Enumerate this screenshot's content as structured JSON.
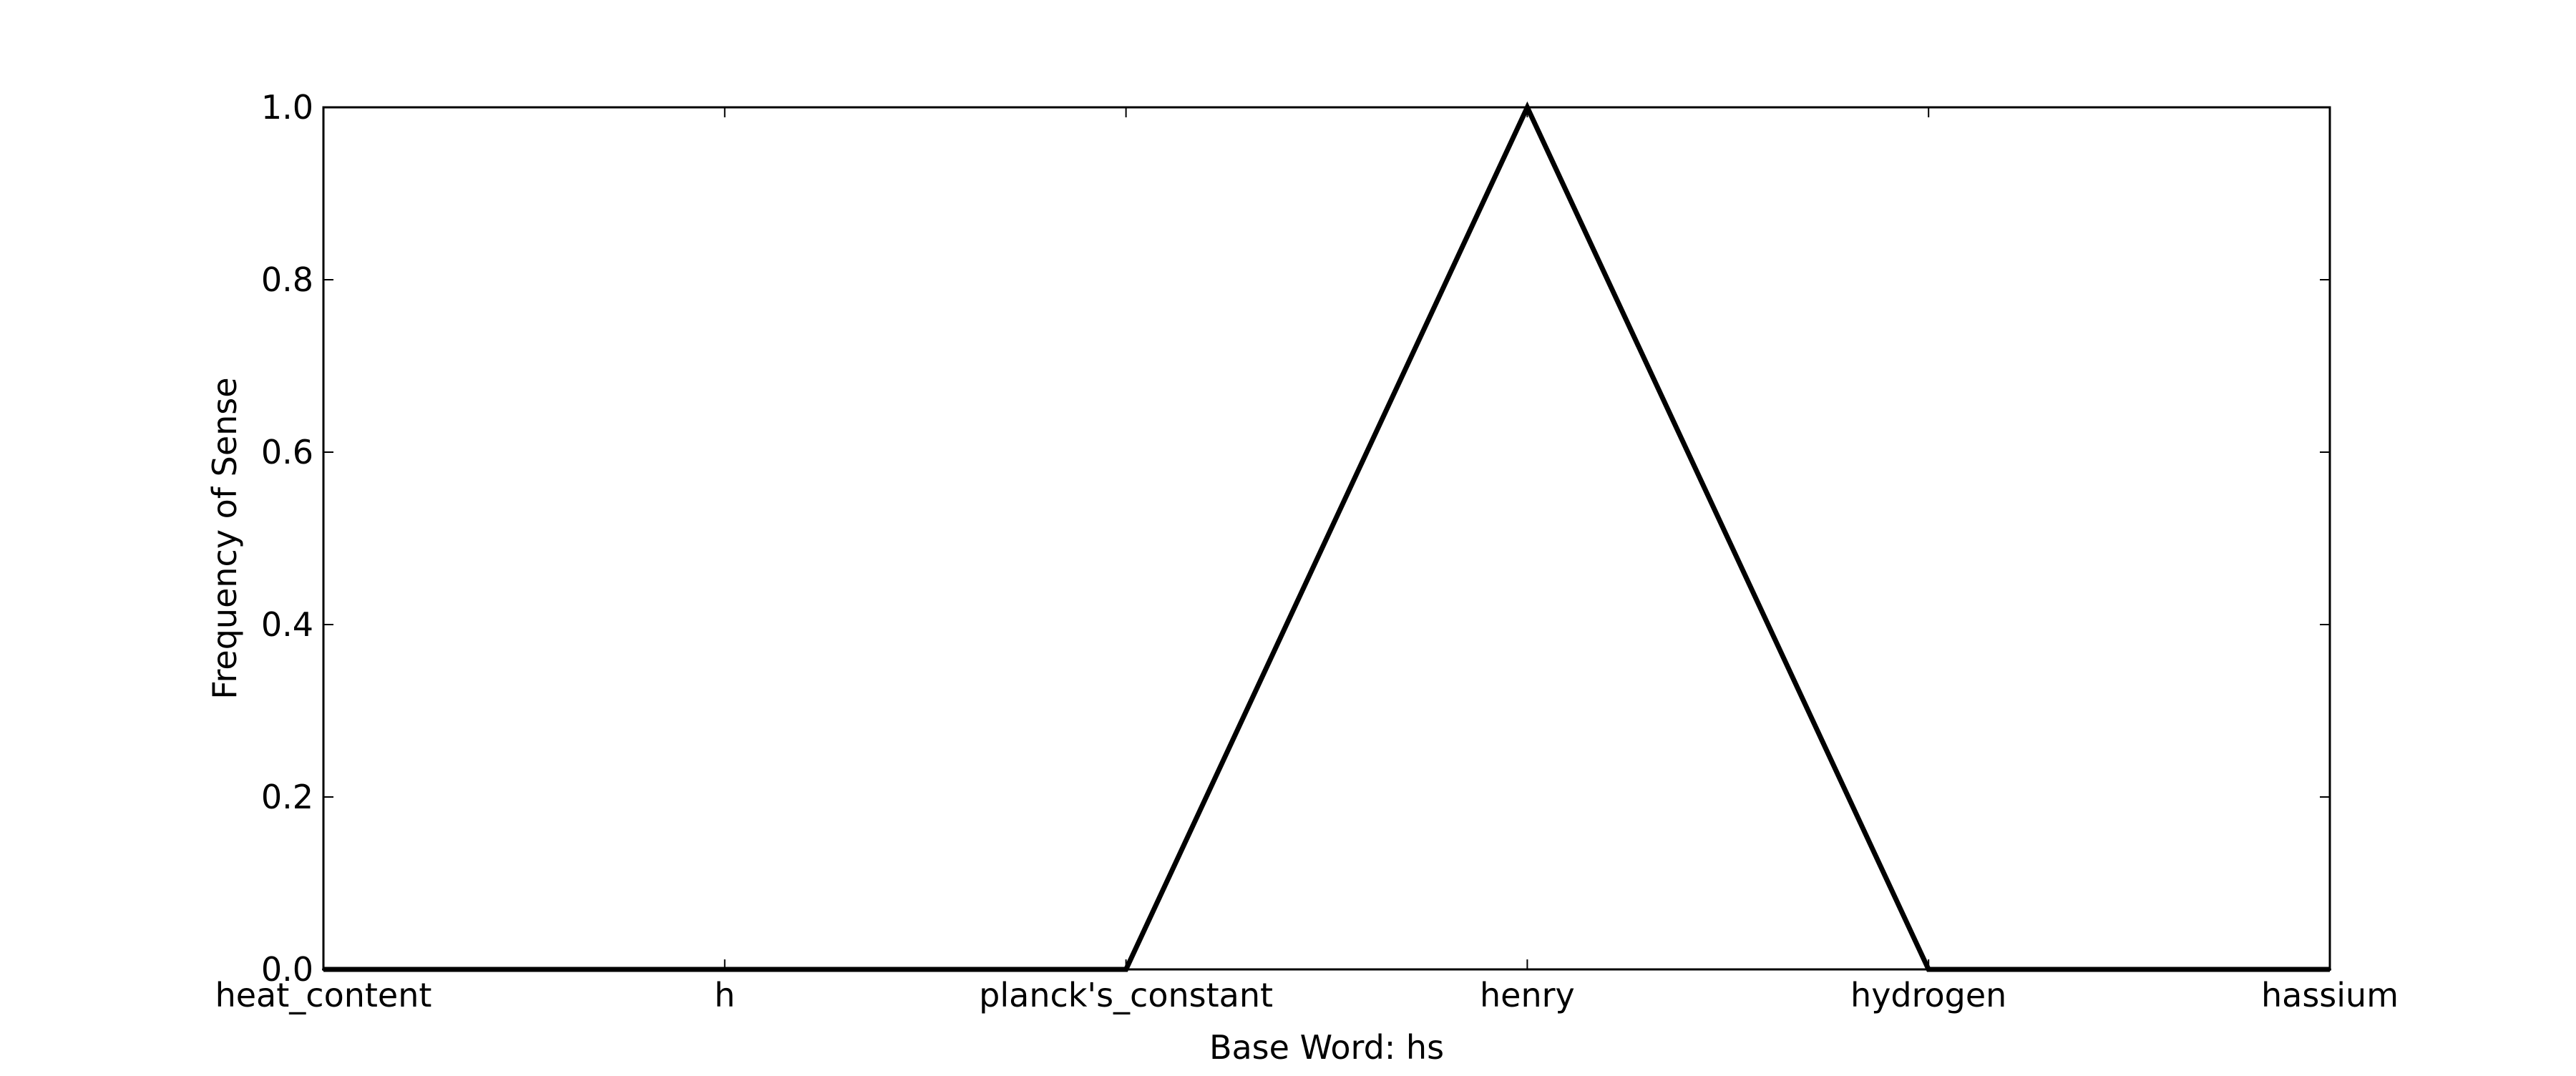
{
  "chart_data": {
    "type": "line",
    "categories": [
      "heat_content",
      "h",
      "planck's_constant",
      "henry",
      "hydrogen",
      "hassium"
    ],
    "x": [
      0,
      1,
      2,
      3,
      4,
      5
    ],
    "series": [
      {
        "values": [
          0.0,
          0.0,
          0.0,
          1.0,
          0.0,
          0.0
        ],
        "color": "#000000"
      }
    ],
    "title": "",
    "xlabel": "Base Word: hs",
    "ylabel": "Frequency of Sense",
    "xlim": [
      0,
      5
    ],
    "ylim": [
      0.0,
      1.0
    ],
    "yticks": [
      0.0,
      0.2,
      0.4,
      0.6,
      0.8,
      1.0
    ],
    "ytick_labels": [
      "0.0",
      "0.2",
      "0.4",
      "0.6",
      "0.8",
      "1.0"
    ],
    "grid": false,
    "legend": "none"
  }
}
